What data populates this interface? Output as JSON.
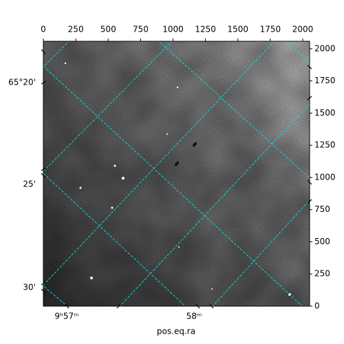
{
  "chart_data": {
    "type": "image",
    "xlabel": "pos.eq.ra",
    "xlim": [
      0,
      2053
    ],
    "xticks": [
      0,
      250,
      500,
      750,
      1000,
      1250,
      1500,
      1750,
      2000
    ],
    "ylim": [
      0,
      2058
    ],
    "yticks": [
      0,
      250,
      500,
      750,
      1000,
      1250,
      1500,
      1750,
      2000
    ],
    "dec_tick_labels": [
      "65°20'",
      "25'",
      "30'"
    ],
    "ra_tick_labels": [
      "9ʰ57ᵐ",
      "58ᵐ"
    ],
    "grid_color": "#00e5e5"
  }
}
